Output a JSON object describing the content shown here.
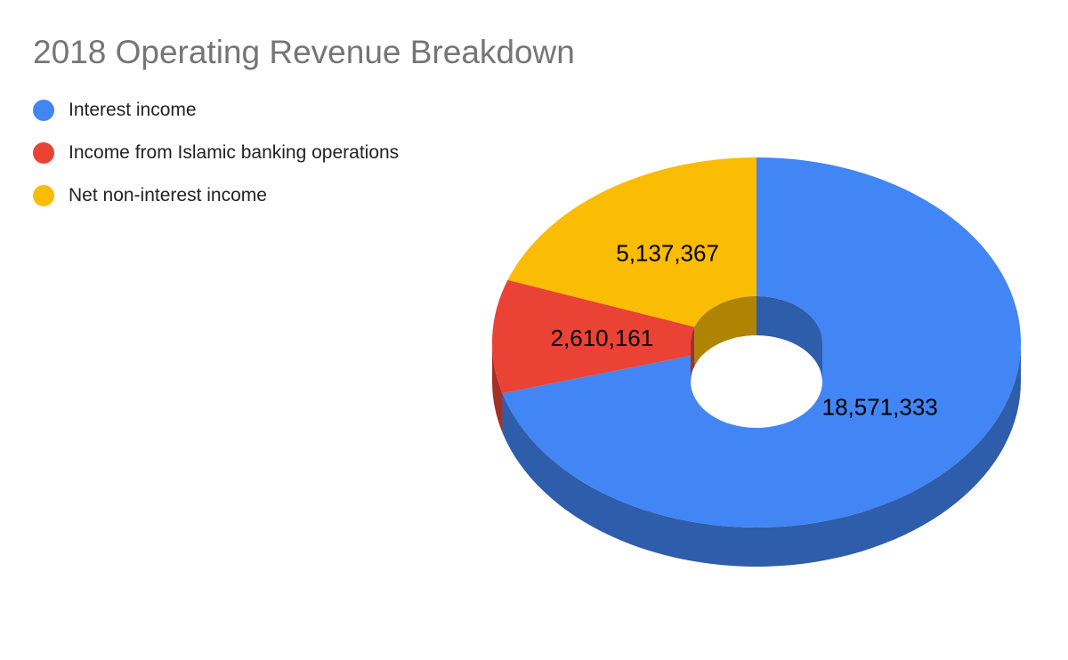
{
  "chart_data": {
    "type": "pie",
    "variant": "3d-donut",
    "title": "2018 Operating Revenue Breakdown",
    "legend_position": "top-left",
    "series": [
      {
        "name": "Interest income",
        "value": 18571333,
        "label": "18,571,333",
        "color": "#4285f4"
      },
      {
        "name": "Income from Islamic banking operations",
        "value": 2610161,
        "label": "2,610,161",
        "color": "#ea4335"
      },
      {
        "name": "Net non-interest income",
        "value": 5137367,
        "label": "5,137,367",
        "color": "#fbbc04"
      }
    ]
  }
}
